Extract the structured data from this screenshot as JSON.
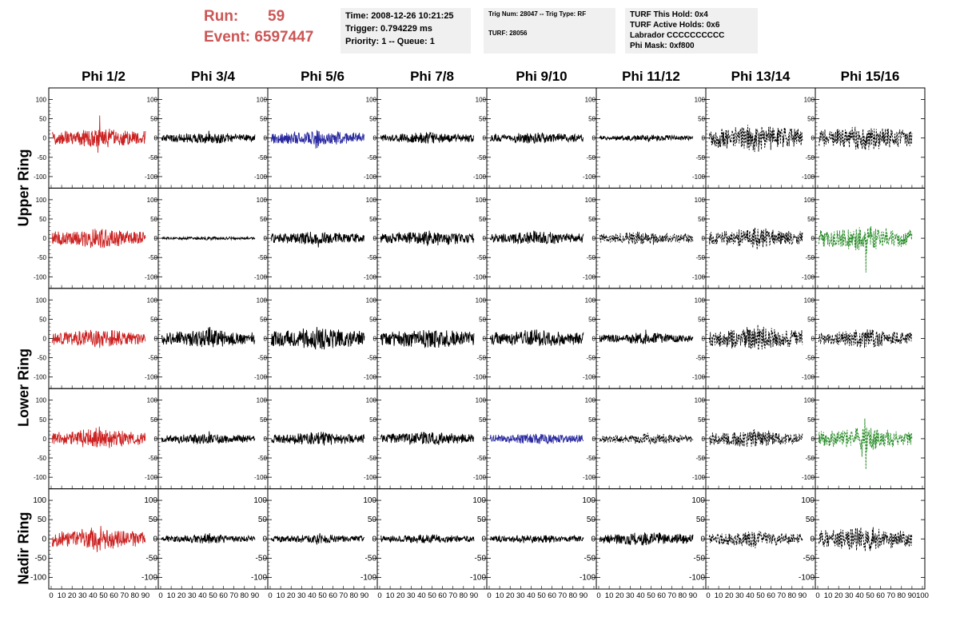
{
  "header": {
    "run_label": "Run:",
    "run_value": "59",
    "event_label": "Event:",
    "event_value": "6597447"
  },
  "info_boxes": [
    {
      "lines": [
        "Time: 2008-12-26 10:21:25",
        "Trigger: 0.794229 ms",
        "Priority: 1 -- Queue: 1"
      ]
    },
    {
      "lines": [
        "Trig Num: 28047 -- Trig Type: RF",
        "",
        "TURF: 28056"
      ]
    },
    {
      "lines": [
        "TURF This Hold: 0x4",
        "TURF Active Holds: 0x6",
        "Labrador CCCCCCCCCC",
        "Phi Mask: 0xf800"
      ]
    }
  ],
  "chart_data": {
    "type": "line",
    "columns": [
      "Phi 1/2",
      "Phi 3/4",
      "Phi 5/6",
      "Phi 7/8",
      "Phi 9/10",
      "Phi 11/12",
      "Phi 13/14",
      "Phi 15/16"
    ],
    "ring_labels": [
      {
        "name": "Upper Ring",
        "rows": [
          0,
          1
        ]
      },
      {
        "name": "Lower Ring",
        "rows": [
          2,
          3
        ]
      },
      {
        "name": "Nadir Ring",
        "rows": [
          4
        ]
      }
    ],
    "ylim": [
      -130,
      130
    ],
    "xlim": [
      0,
      100
    ],
    "y_ticks": [
      -100,
      -50,
      0,
      50,
      100
    ],
    "y_tick_labels": [
      "-100",
      "-50",
      "0",
      "50",
      "100"
    ],
    "x_ticks": [
      0,
      10,
      20,
      30,
      40,
      50,
      60,
      70,
      80,
      90,
      100
    ],
    "x_tick_labels": [
      "0",
      "10",
      "20",
      "30",
      "40",
      "50",
      "60",
      "70",
      "80",
      "90",
      "100"
    ],
    "grid": false,
    "colors": {
      "red": "#cc2222",
      "blue": "#2a2aa0",
      "green": "#228822",
      "black": "#000000"
    },
    "panels": [
      [
        {
          "amp": 18,
          "burst": 60,
          "color": "red",
          "dash": false
        },
        {
          "amp": 10,
          "burst": 20,
          "color": "black",
          "dash": false
        },
        {
          "amp": 14,
          "burst": 28,
          "color": "blue",
          "dash": false
        },
        {
          "amp": 10,
          "burst": 15,
          "color": "black",
          "dash": false
        },
        {
          "amp": 10,
          "burst": 15,
          "color": "black",
          "dash": false
        },
        {
          "amp": 6,
          "burst": 10,
          "color": "black",
          "dash": false
        },
        {
          "amp": 25,
          "burst": 40,
          "color": "black",
          "dash": true
        },
        {
          "amp": 22,
          "burst": 35,
          "color": "black",
          "dash": true
        }
      ],
      [
        {
          "amp": 18,
          "burst": 30,
          "color": "red",
          "dash": false
        },
        {
          "amp": 3,
          "burst": 5,
          "color": "black",
          "dash": false
        },
        {
          "amp": 12,
          "burst": 25,
          "color": "black",
          "dash": false
        },
        {
          "amp": 14,
          "burst": 25,
          "color": "black",
          "dash": false
        },
        {
          "amp": 12,
          "burst": 20,
          "color": "black",
          "dash": false
        },
        {
          "amp": 12,
          "burst": 20,
          "color": "black",
          "dash": true
        },
        {
          "amp": 18,
          "burst": 30,
          "color": "black",
          "dash": true
        },
        {
          "amp": 22,
          "burst": 100,
          "color": "green",
          "dash": true
        }
      ],
      [
        {
          "amp": 16,
          "burst": 50,
          "color": "red",
          "dash": false
        },
        {
          "amp": 16,
          "burst": 30,
          "color": "black",
          "dash": false
        },
        {
          "amp": 20,
          "burst": 30,
          "color": "black",
          "dash": false
        },
        {
          "amp": 18,
          "burst": 30,
          "color": "black",
          "dash": false
        },
        {
          "amp": 16,
          "burst": 25,
          "color": "black",
          "dash": false
        },
        {
          "amp": 10,
          "burst": 25,
          "color": "black",
          "dash": false
        },
        {
          "amp": 22,
          "burst": 40,
          "color": "black",
          "dash": true
        },
        {
          "amp": 16,
          "burst": 25,
          "color": "black",
          "dash": true
        }
      ],
      [
        {
          "amp": 18,
          "burst": 40,
          "color": "red",
          "dash": false
        },
        {
          "amp": 10,
          "burst": 20,
          "color": "black",
          "dash": false
        },
        {
          "amp": 12,
          "burst": 25,
          "color": "black",
          "dash": false
        },
        {
          "amp": 12,
          "burst": 20,
          "color": "black",
          "dash": false
        },
        {
          "amp": 10,
          "burst": 20,
          "color": "blue",
          "dash": false
        },
        {
          "amp": 10,
          "burst": 18,
          "color": "black",
          "dash": true
        },
        {
          "amp": 16,
          "burst": 30,
          "color": "black",
          "dash": true
        },
        {
          "amp": 20,
          "burst": 90,
          "color": "green",
          "dash": true
        }
      ],
      [
        {
          "amp": 20,
          "burst": 35,
          "color": "red",
          "dash": false
        },
        {
          "amp": 8,
          "burst": 15,
          "color": "black",
          "dash": false
        },
        {
          "amp": 8,
          "burst": 15,
          "color": "black",
          "dash": false
        },
        {
          "amp": 8,
          "burst": 12,
          "color": "black",
          "dash": false
        },
        {
          "amp": 8,
          "burst": 12,
          "color": "black",
          "dash": false
        },
        {
          "amp": 12,
          "burst": 35,
          "color": "black",
          "dash": false
        },
        {
          "amp": 14,
          "burst": 25,
          "color": "black",
          "dash": true
        },
        {
          "amp": 22,
          "burst": 40,
          "color": "black",
          "dash": true
        }
      ]
    ]
  }
}
